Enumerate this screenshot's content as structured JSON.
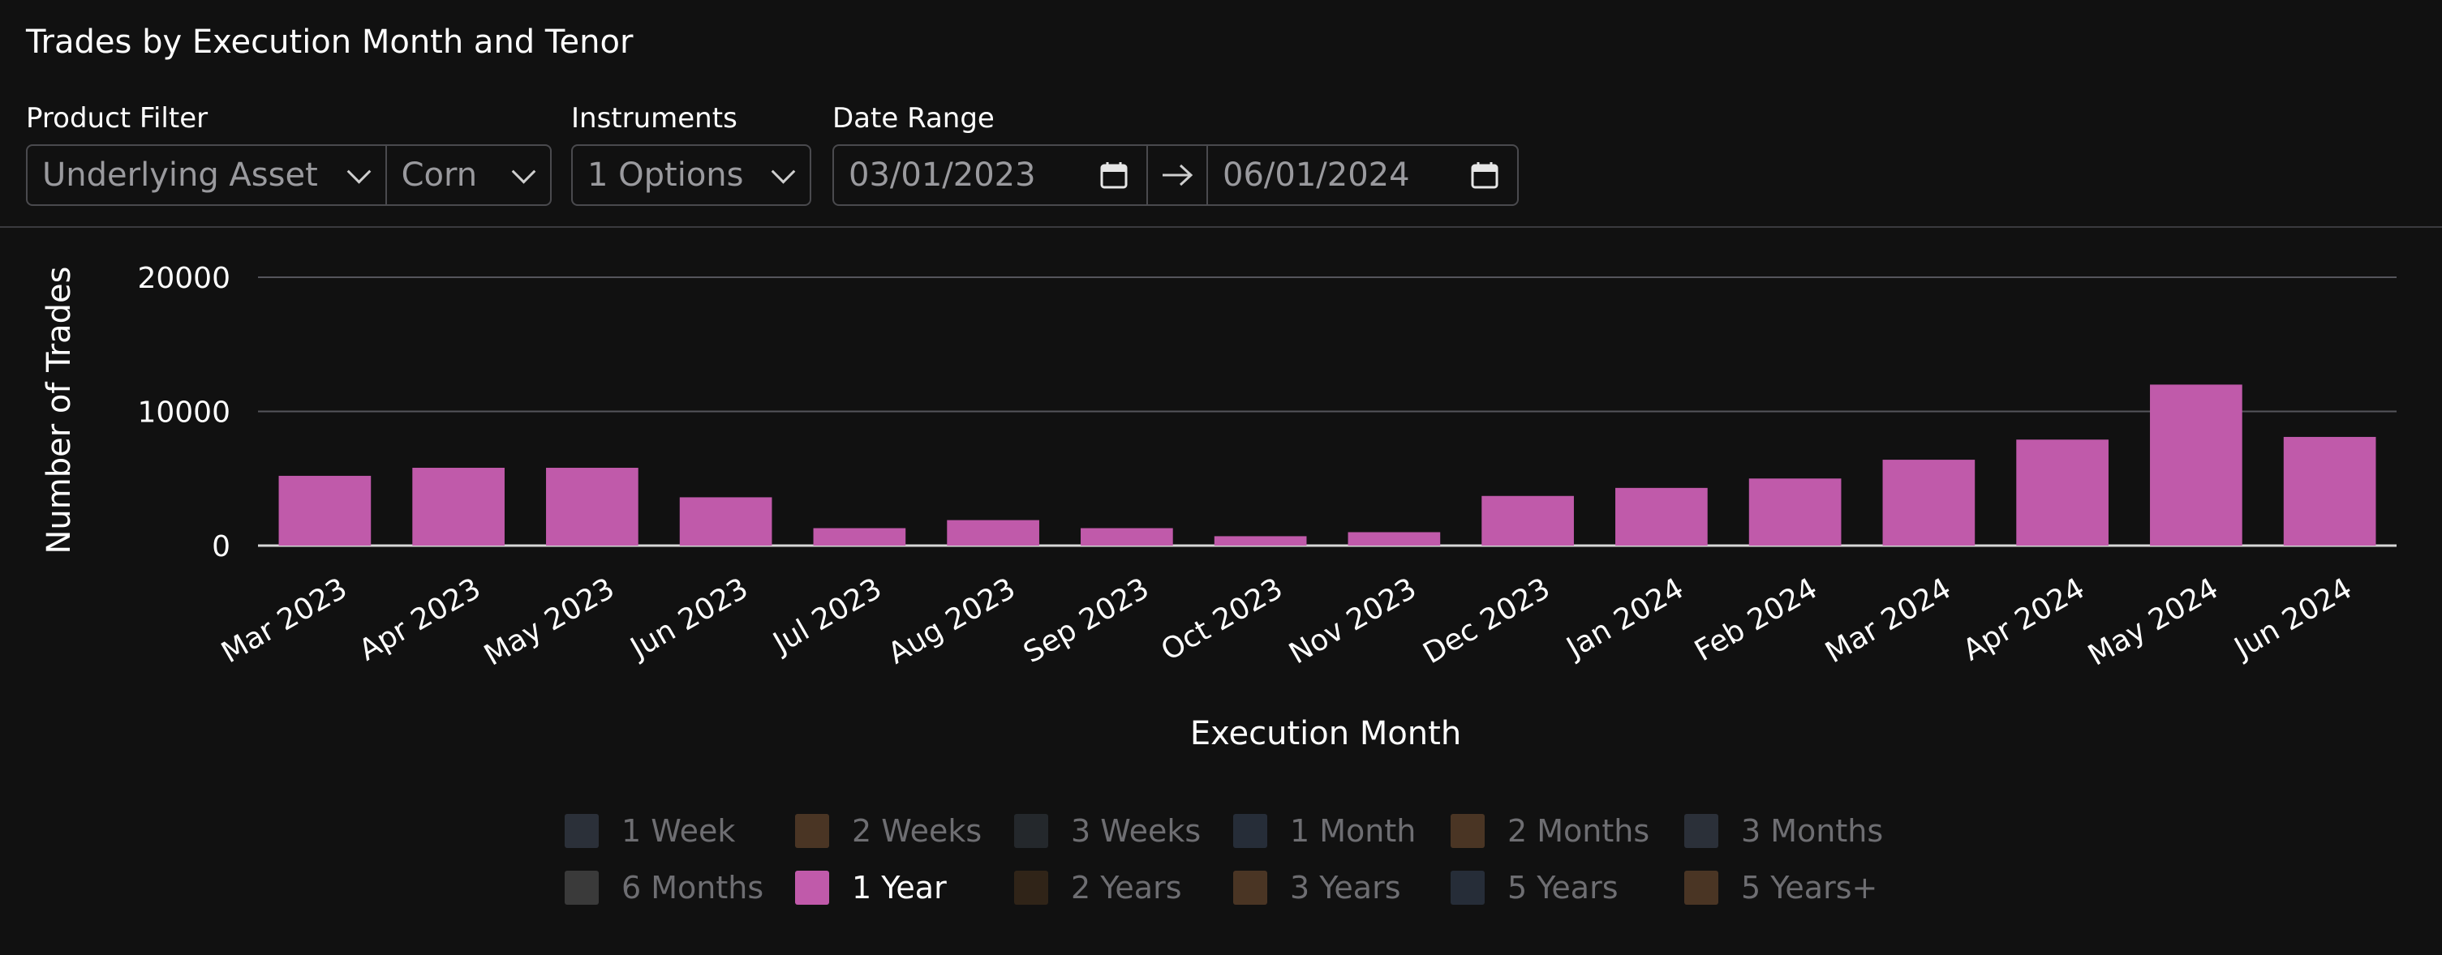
{
  "title": "Trades by Execution Month and Tenor",
  "filters": {
    "product_filter_label": "Product Filter",
    "product_filter_field": "Underlying Asset",
    "product_filter_value": "Corn",
    "instruments_label": "Instruments",
    "instruments_value": "1 Options",
    "date_range_label": "Date Range",
    "date_from": "03/01/2023",
    "date_to": "06/01/2024"
  },
  "chart_data": {
    "type": "bar",
    "xlabel": "Execution Month",
    "ylabel": "Number of Trades",
    "ylim": [
      0,
      20000
    ],
    "yticks": [
      0,
      10000,
      20000
    ],
    "grid": true,
    "categories": [
      "Mar 2023",
      "Apr 2023",
      "May 2023",
      "Jun 2023",
      "Jul 2023",
      "Aug 2023",
      "Sep 2023",
      "Oct 2023",
      "Nov 2023",
      "Dec 2023",
      "Jan 2024",
      "Feb 2024",
      "Mar 2024",
      "Apr 2024",
      "May 2024",
      "Jun 2024"
    ],
    "series": [
      {
        "name": "1 Year",
        "color": "#c05aaa",
        "values": [
          5200,
          5800,
          5800,
          3600,
          1300,
          1900,
          1300,
          700,
          1000,
          3700,
          4300,
          5000,
          6400,
          7900,
          12000,
          8100
        ]
      }
    ],
    "legend": {
      "position": "bottom-center",
      "items": [
        {
          "label": "1 Week",
          "color": "#2b3039",
          "active": false
        },
        {
          "label": "2 Weeks",
          "color": "#4a3524",
          "active": false
        },
        {
          "label": "3 Weeks",
          "color": "#24282c",
          "active": false
        },
        {
          "label": "1 Month",
          "color": "#262d38",
          "active": false
        },
        {
          "label": "2 Months",
          "color": "#4a3524",
          "active": false
        },
        {
          "label": "3 Months",
          "color": "#2b3039",
          "active": false
        },
        {
          "label": "6 Months",
          "color": "#3a3a3a",
          "active": false
        },
        {
          "label": "1 Year",
          "color": "#c05aaa",
          "active": true
        },
        {
          "label": "2 Years",
          "color": "#302418",
          "active": false
        },
        {
          "label": "3 Years",
          "color": "#4a3524",
          "active": false
        },
        {
          "label": "5 Years",
          "color": "#262d38",
          "active": false
        },
        {
          "label": "5 Years+",
          "color": "#4a3524",
          "active": false
        }
      ]
    }
  }
}
